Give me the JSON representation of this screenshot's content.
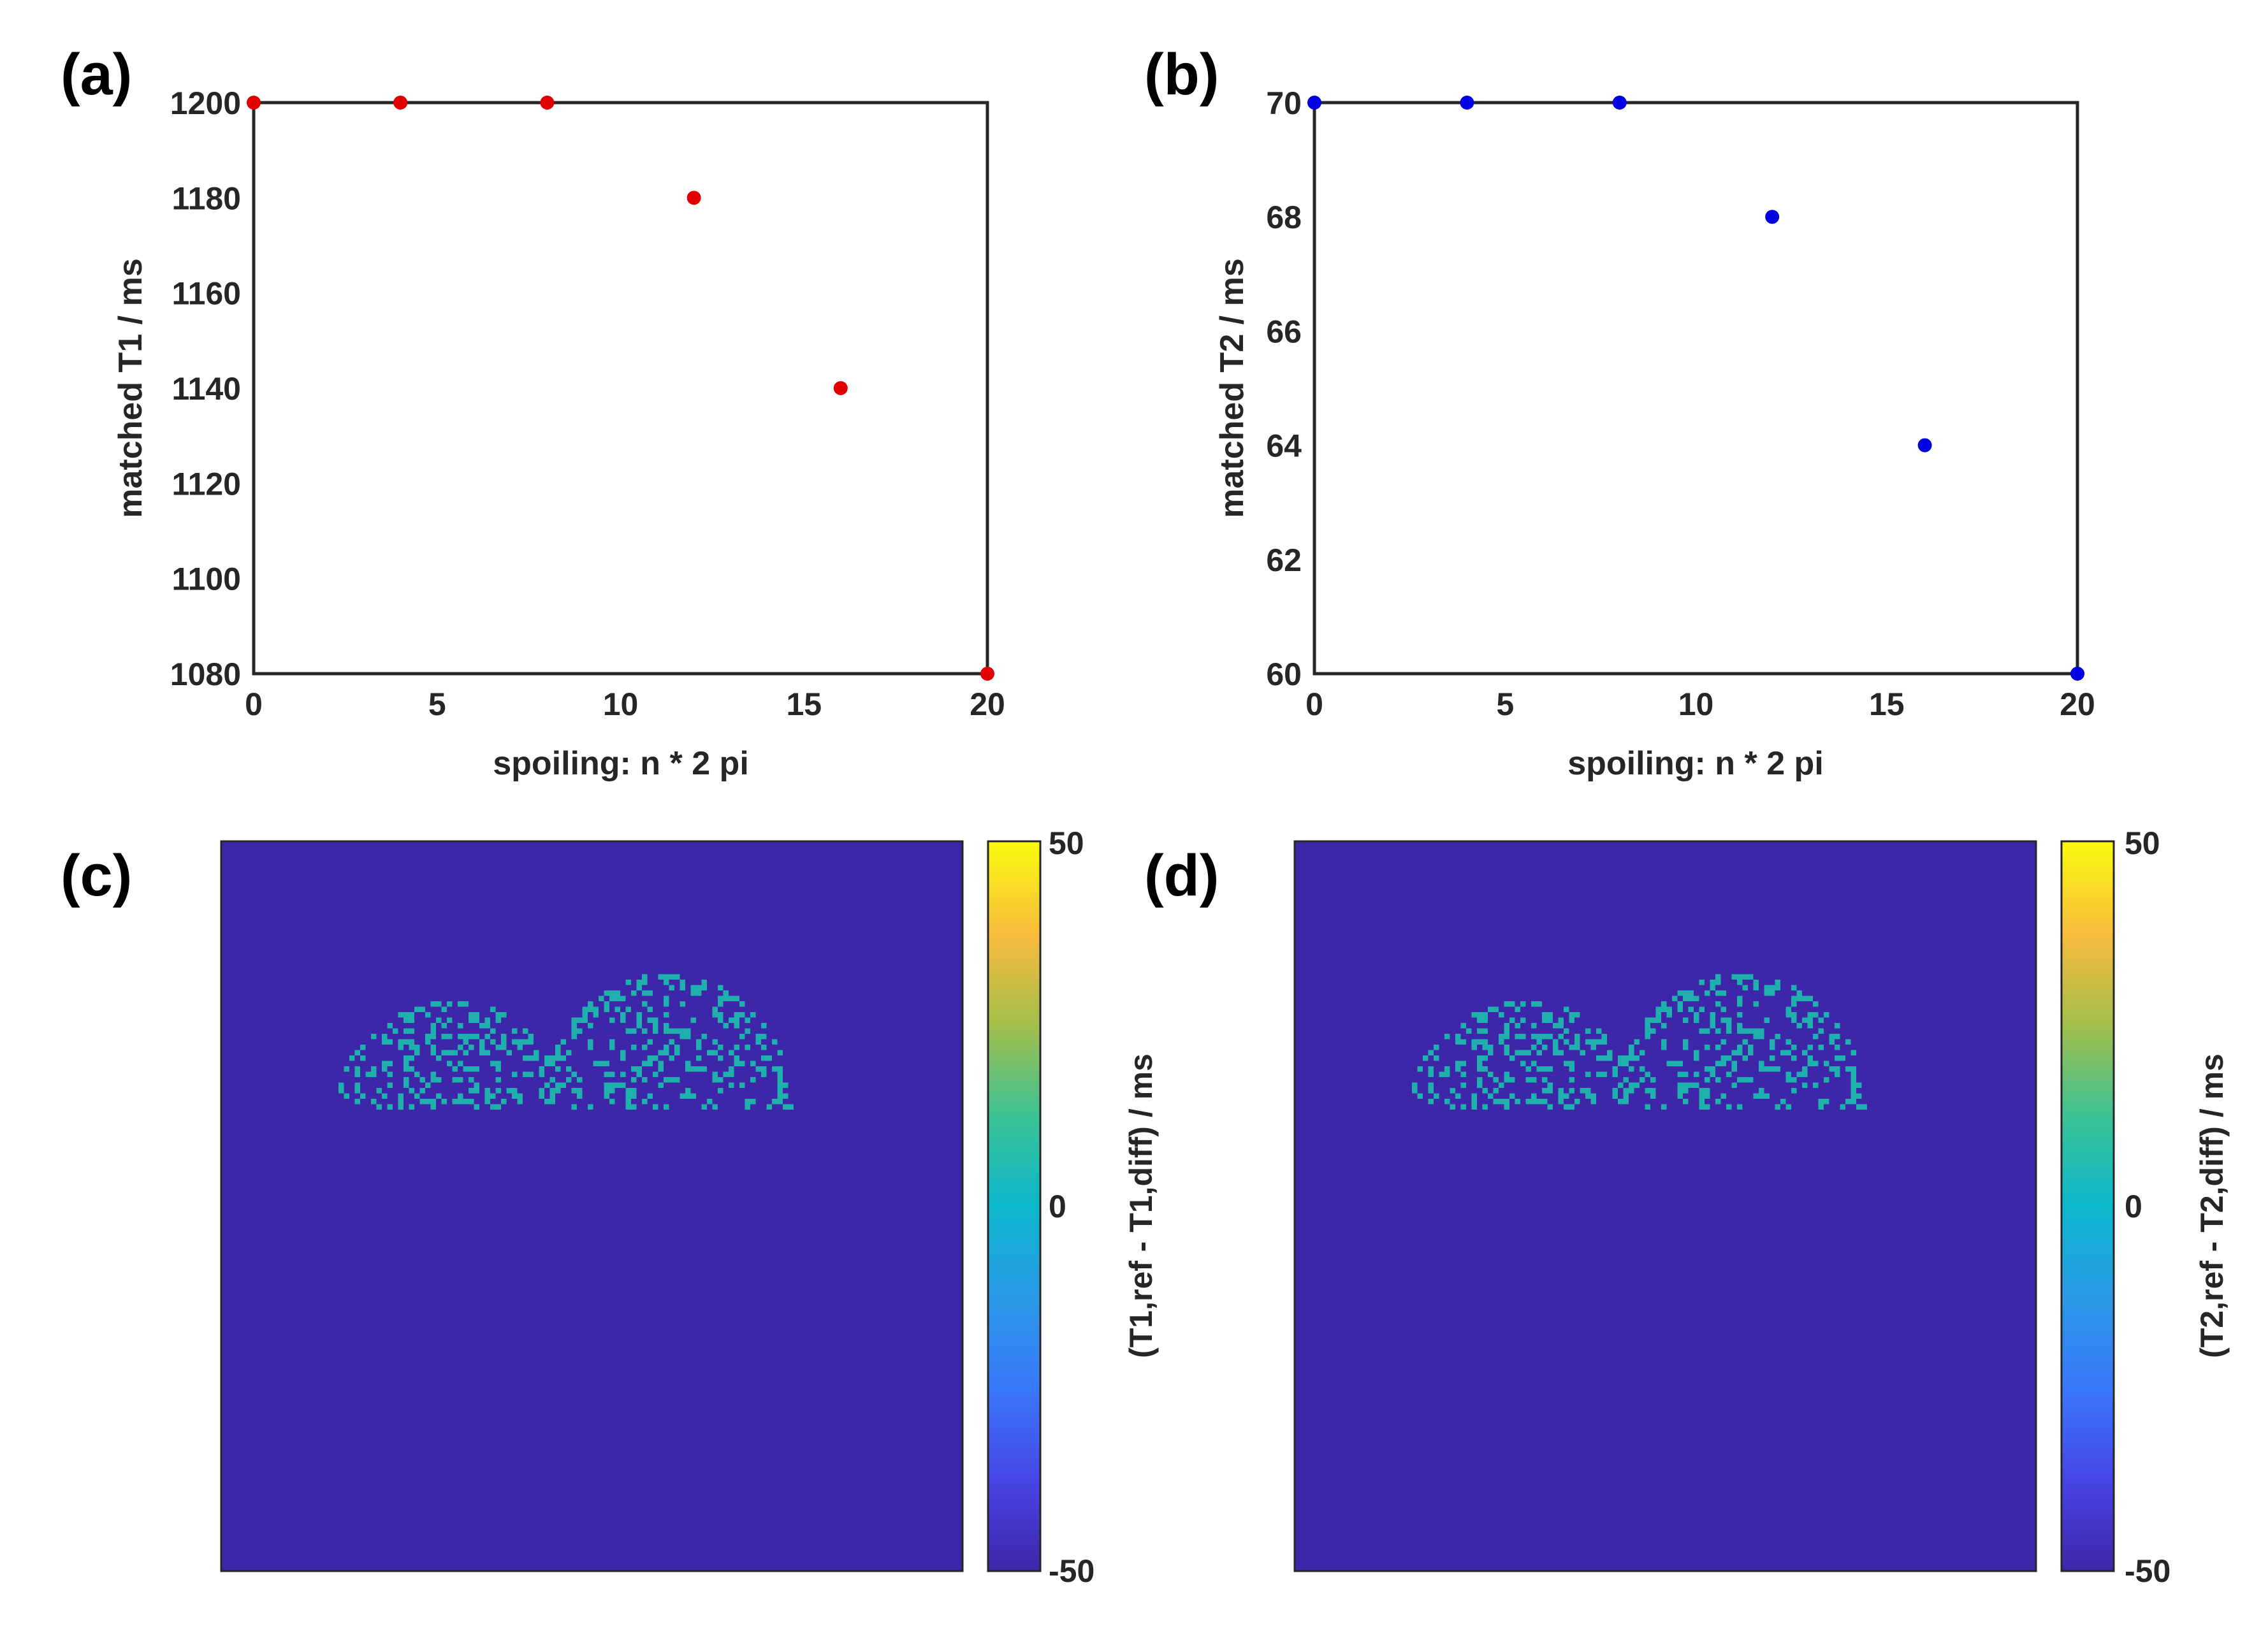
{
  "chart_data": [
    {
      "panel": "(a)",
      "type": "scatter",
      "title": "",
      "xlabel": "spoiling: n * 2 pi",
      "ylabel": "matched T1 / ms",
      "xlim": [
        0,
        20
      ],
      "ylim": [
        1080,
        1200
      ],
      "xticks": [
        0,
        5,
        10,
        15,
        20
      ],
      "yticks": [
        1080,
        1100,
        1120,
        1140,
        1160,
        1180,
        1200
      ],
      "grid": false,
      "color": "#e00000",
      "x": [
        0,
        4,
        8,
        12,
        16,
        20
      ],
      "y": [
        1200,
        1200,
        1200,
        1180,
        1140,
        1080
      ]
    },
    {
      "panel": "(b)",
      "type": "scatter",
      "title": "",
      "xlabel": "spoiling: n * 2 pi",
      "ylabel": "matched T2 / ms",
      "xlim": [
        0,
        20
      ],
      "ylim": [
        60,
        70
      ],
      "xticks": [
        0,
        5,
        10,
        15,
        20
      ],
      "yticks": [
        60,
        62,
        64,
        66,
        68,
        70
      ],
      "grid": false,
      "color": "#0000e0",
      "x": [
        0,
        4,
        8,
        12,
        16,
        20
      ],
      "y": [
        70,
        70,
        70,
        68,
        64,
        60
      ]
    },
    {
      "panel": "(c)",
      "type": "heatmap",
      "title": "",
      "colorbar_label": "(T1,ref - T1,diff) / ms",
      "clim": [
        -50,
        50
      ],
      "colorbar_ticks": [
        -50,
        0,
        50
      ],
      "colormap": "parula",
      "background_value": -50,
      "feature_value": 0
    },
    {
      "panel": "(d)",
      "type": "heatmap",
      "title": "",
      "colorbar_label": "(T2,ref - T2,diff) / ms",
      "clim": [
        -50,
        50
      ],
      "colorbar_ticks": [
        -50,
        0,
        50
      ],
      "colormap": "parula",
      "background_value": -50,
      "feature_value": 0
    }
  ],
  "colors": {
    "map_background": "#3e26a8",
    "map_feature": "#1fb0ae",
    "axes": "#262626"
  }
}
